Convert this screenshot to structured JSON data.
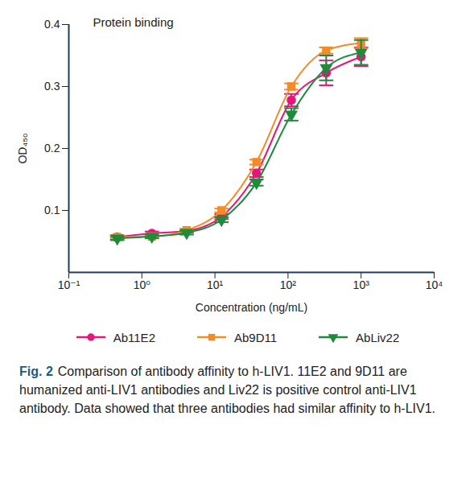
{
  "chart_data": {
    "type": "line",
    "title": "Protein binding",
    "x_label": "Concentration (ng/mL)",
    "y_label": "OD₄₅₀",
    "caption_label": "Fig. 2",
    "caption": "Comparison of antibody affinity to h-LIV1. 11E2 and 9D11 are humanized anti-LIV1 antibodies and Liv22 is positive control anti-LIV1 antibody. Data showed that three antibodies had similar affinity to h-LIV1.",
    "log": "x",
    "grid": false,
    "legend": "bottom",
    "x": [
      0.46,
      1.37,
      4.1,
      12.3,
      37,
      111,
      333,
      1000
    ],
    "xlim": [
      0.1,
      10000
    ],
    "xticks": [
      {
        "value": 0.1,
        "label": "10⁻¹"
      },
      {
        "value": 1,
        "label": "10⁰"
      },
      {
        "value": 10,
        "label": "10¹"
      },
      {
        "value": 100,
        "label": "10²"
      },
      {
        "value": 1000,
        "label": "10³"
      },
      {
        "value": 10000,
        "label": "10⁴"
      }
    ],
    "ylim": [
      0,
      0.4
    ],
    "yticks": [
      0.1,
      0.2,
      0.3,
      0.4
    ],
    "series": [
      {
        "name": "Ab11E2",
        "color": "#e5177b",
        "marker": "circle",
        "values": [
          0.057,
          0.063,
          0.067,
          0.09,
          0.16,
          0.278,
          0.322,
          0.348
        ],
        "errors": [
          0.003,
          0.003,
          0.003,
          0.004,
          0.006,
          0.01,
          0.02,
          0.015
        ]
      },
      {
        "name": "Ab9D11",
        "color": "#f28c28",
        "marker": "square",
        "values": [
          0.057,
          0.058,
          0.068,
          0.1,
          0.178,
          0.3,
          0.358,
          0.37
        ],
        "errors": [
          0.002,
          0.002,
          0.002,
          0.003,
          0.004,
          0.005,
          0.005,
          0.008
        ]
      },
      {
        "name": "AbLiv22",
        "color": "#1f8a3b",
        "marker": "triangle-down",
        "values": [
          0.055,
          0.058,
          0.064,
          0.085,
          0.145,
          0.255,
          0.33,
          0.355
        ],
        "errors": [
          0.003,
          0.003,
          0.003,
          0.004,
          0.005,
          0.01,
          0.02,
          0.02
        ]
      }
    ]
  }
}
